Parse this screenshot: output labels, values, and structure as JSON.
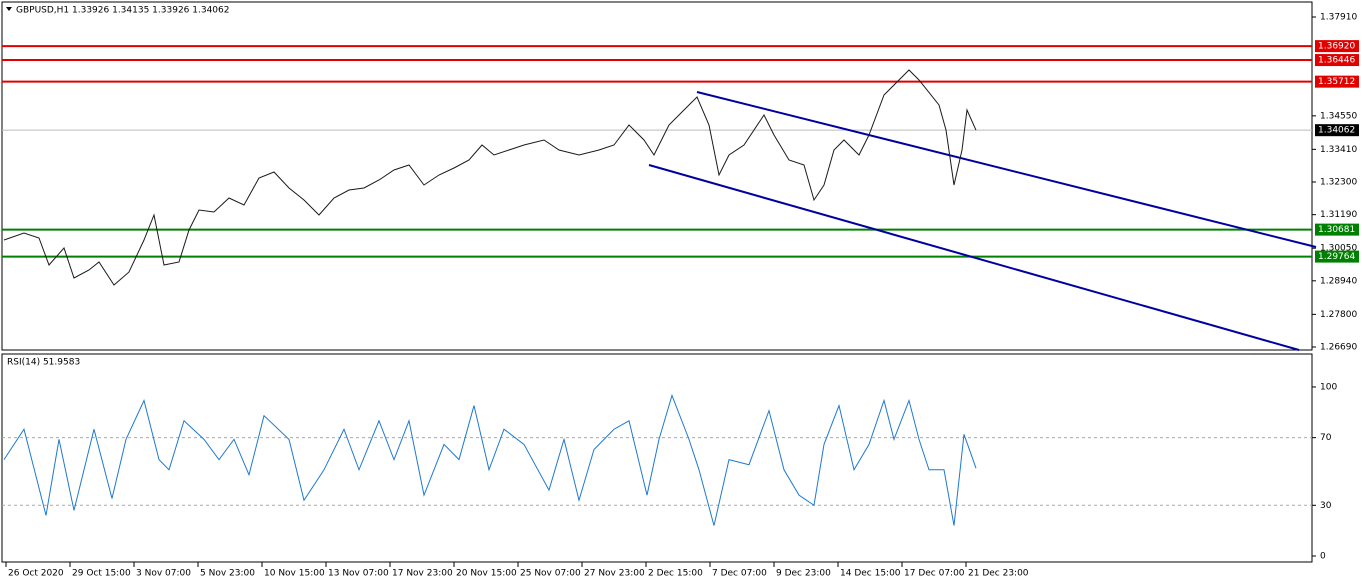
{
  "chart_data": [
    {
      "type": "line",
      "title": "GBPUSD,H1  1.33926 1.34135 1.33926 1.34062",
      "xlim": [
        -2,
        1308
      ],
      "xticks": [
        {
          "value": 2,
          "label": "26 Oct 2020"
        },
        {
          "value": 66,
          "label": "29 Oct 15:00"
        },
        {
          "value": 130,
          "label": "3 Nov 07:00"
        },
        {
          "value": 194,
          "label": "5 Nov 23:00"
        },
        {
          "value": 258,
          "label": "10 Nov 15:00"
        },
        {
          "value": 322,
          "label": "13 Nov 07:00"
        },
        {
          "value": 386,
          "label": "17 Nov 23:00"
        },
        {
          "value": 450,
          "label": "20 Nov 15:00"
        },
        {
          "value": 514,
          "label": "25 Nov 07:00"
        },
        {
          "value": 578,
          "label": "27 Nov 23:00"
        },
        {
          "value": 642,
          "label": "2 Dec 15:00"
        },
        {
          "value": 706,
          "label": "7 Dec 07:00"
        },
        {
          "value": 770,
          "label": "9 Dec 23:00"
        },
        {
          "value": 834,
          "label": "14 Dec 15:00"
        },
        {
          "value": 898,
          "label": "17 Dec 07:00"
        },
        {
          "value": 962,
          "label": "21 Dec 23:00"
        }
      ],
      "ylim": [
        1.26588,
        1.3842
      ],
      "yticks": [
        {
          "value": 1.3791,
          "label": "1.37910"
        },
        {
          "value": 1.3455,
          "label": "1.34550"
        },
        {
          "value": 1.3341,
          "label": "1.33410"
        },
        {
          "value": 1.323,
          "label": "1.32300"
        },
        {
          "value": 1.3119,
          "label": "1.31190"
        },
        {
          "value": 1.3005,
          "label": "1.30050"
        },
        {
          "value": 1.2894,
          "label": "1.28940"
        },
        {
          "value": 1.278,
          "label": "1.27800"
        },
        {
          "value": 1.2669,
          "label": "1.26690"
        }
      ],
      "series": [
        {
          "color": "#1a1a1a",
          "x": [
            0,
            20,
            35,
            45,
            60,
            70,
            85,
            95,
            110,
            125,
            140,
            150,
            160,
            175,
            185,
            195,
            210,
            225,
            240,
            255,
            270,
            285,
            300,
            315,
            330,
            345,
            360,
            375,
            390,
            405,
            420,
            435,
            450,
            465,
            478,
            490,
            505,
            520,
            540,
            555,
            575,
            595,
            610,
            625,
            640,
            650,
            665,
            680,
            693,
            705,
            715,
            725,
            740,
            760,
            770,
            785,
            800,
            810,
            820,
            830,
            840,
            855,
            865,
            880,
            895,
            905,
            915,
            935,
            942,
            950,
            958,
            963,
            972
          ],
          "values": [
            1.30328,
            1.30566,
            1.30396,
            1.29478,
            1.30056,
            1.29036,
            1.29308,
            1.2958,
            1.28798,
            1.2924,
            1.30328,
            1.31178,
            1.29478,
            1.2958,
            1.30668,
            1.31348,
            1.3128,
            1.31756,
            1.31518,
            1.32436,
            1.3264,
            1.32096,
            1.31688,
            1.31178,
            1.31756,
            1.32028,
            1.32096,
            1.32368,
            1.32708,
            1.32878,
            1.32198,
            1.32538,
            1.32776,
            1.33048,
            1.33558,
            1.33218,
            1.33388,
            1.33558,
            1.33728,
            1.33388,
            1.33218,
            1.33388,
            1.33558,
            1.34238,
            1.33728,
            1.33218,
            1.34238,
            1.34748,
            1.3519,
            1.34238,
            1.32538,
            1.33218,
            1.33558,
            1.34578,
            1.33898,
            1.33048,
            1.32878,
            1.31688,
            1.32198,
            1.33388,
            1.33728,
            1.33218,
            1.33898,
            1.35258,
            1.35768,
            1.36108,
            1.35768,
            1.34918,
            1.34068,
            1.32198,
            1.33388,
            1.34748,
            1.34062
          ]
        }
      ],
      "channel_lines": [
        {
          "color": "#0000a0",
          "x": [
            693,
            1312
          ],
          "values": [
            1.3536,
            1.3009
          ]
        },
        {
          "color": "#0000a0",
          "x": [
            645,
            1295
          ],
          "values": [
            1.32878,
            1.26588
          ]
        }
      ],
      "levels": [
        {
          "value": 1.3692,
          "label": "1.36920",
          "color": "#e00000"
        },
        {
          "value": 1.36446,
          "label": "1.36446",
          "color": "#e00000"
        },
        {
          "value": 1.35712,
          "label": "1.35712",
          "color": "#e00000"
        },
        {
          "value": 1.30681,
          "label": "1.30681",
          "color": "#008000"
        },
        {
          "value": 1.29764,
          "label": "1.29764",
          "color": "#008000"
        }
      ],
      "current": {
        "value": 1.34062,
        "label": "1.34062",
        "color": "#000000"
      }
    },
    {
      "type": "line",
      "title": "RSI(14) 51.9583",
      "xlim": [
        -2,
        1308
      ],
      "ylim": [
        -3.55,
        119.5
      ],
      "yticks": [
        0,
        30,
        70,
        100
      ],
      "levels": [
        30,
        70
      ],
      "series": [
        {
          "color": "#1e78d2",
          "x": [
            0,
            20,
            42,
            55,
            70,
            90,
            108,
            122,
            140,
            155,
            165,
            180,
            200,
            215,
            230,
            245,
            260,
            285,
            300,
            320,
            340,
            355,
            375,
            390,
            405,
            420,
            440,
            455,
            470,
            485,
            500,
            520,
            545,
            560,
            575,
            590,
            610,
            625,
            643,
            655,
            668,
            685,
            695,
            710,
            725,
            745,
            765,
            780,
            795,
            810,
            820,
            835,
            850,
            865,
            880,
            890,
            905,
            915,
            925,
            940,
            950,
            960,
            972
          ],
          "values": [
            57,
            75,
            24,
            69,
            27,
            75,
            34,
            69,
            92,
            57,
            51,
            80,
            69,
            57,
            69,
            48,
            83,
            69,
            33,
            51,
            75,
            51,
            80,
            57,
            80,
            36,
            66,
            57,
            89,
            51,
            75,
            66,
            39,
            69,
            33,
            63,
            75,
            80,
            36,
            69,
            95,
            69,
            51,
            18,
            57,
            54,
            86,
            51,
            36,
            30,
            66,
            89,
            51,
            66,
            92,
            69,
            92,
            69,
            51,
            51,
            18,
            72,
            51.9583
          ]
        }
      ]
    }
  ]
}
